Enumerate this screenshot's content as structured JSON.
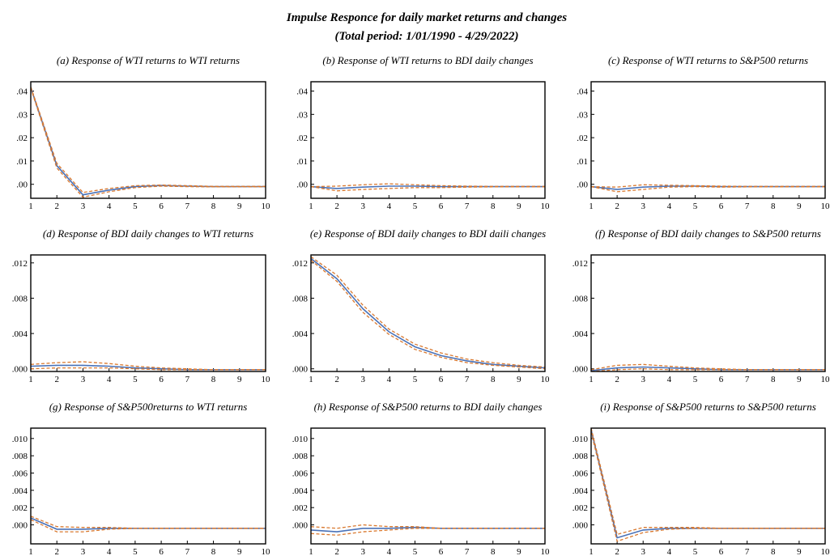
{
  "figure": {
    "title": "Impulse Responce for daily market returns and changes",
    "subtitle": "(Total period: 1/01/1990 - 4/29/2022)"
  },
  "colors": {
    "response": "#4a72b8",
    "bands": "#d9782e",
    "frame": "#000000"
  },
  "chart_data": [
    {
      "type": "line",
      "title": "(a) Response of WTI returns to WTI returns",
      "x": [
        1,
        2,
        3,
        4,
        5,
        6,
        7,
        8,
        9,
        10
      ],
      "ylim": [
        -0.006,
        0.044
      ],
      "yticks": [
        0,
        0.01,
        0.02,
        0.03,
        0.04
      ],
      "yticklabels": [
        ".00",
        ".01",
        ".02",
        ".03",
        ".04"
      ],
      "series": [
        {
          "role": "response",
          "values": [
            0.0415,
            0.008,
            -0.0045,
            -0.0025,
            -0.001,
            -0.0005,
            -0.0008,
            -0.001,
            -0.001,
            -0.001
          ]
        },
        {
          "role": "upper",
          "values": [
            0.0418,
            0.009,
            -0.0035,
            -0.0018,
            -0.0006,
            -0.0003,
            -0.0006,
            -0.0009,
            -0.0009,
            -0.0009
          ]
        },
        {
          "role": "lower",
          "values": [
            0.0412,
            0.007,
            -0.0055,
            -0.0032,
            -0.0014,
            -0.0008,
            -0.001,
            -0.0011,
            -0.0011,
            -0.0011
          ]
        }
      ]
    },
    {
      "type": "line",
      "title": "(b) Response of WTI returns to BDI daily changes",
      "x": [
        1,
        2,
        3,
        4,
        5,
        6,
        7,
        8,
        9,
        10
      ],
      "ylim": [
        -0.006,
        0.044
      ],
      "yticks": [
        0,
        0.01,
        0.02,
        0.03,
        0.04
      ],
      "yticklabels": [
        ".00",
        ".01",
        ".02",
        ".03",
        ".04"
      ],
      "series": [
        {
          "role": "response",
          "values": [
            -0.001,
            -0.0018,
            -0.0012,
            -0.0008,
            -0.0008,
            -0.001,
            -0.001,
            -0.001,
            -0.001,
            -0.001
          ]
        },
        {
          "role": "upper",
          "values": [
            -0.001,
            -0.0008,
            -0.0002,
            0.0002,
            -0.0002,
            -0.0006,
            -0.0008,
            -0.0009,
            -0.0009,
            -0.0009
          ]
        },
        {
          "role": "lower",
          "values": [
            -0.001,
            -0.0028,
            -0.0022,
            -0.0018,
            -0.0014,
            -0.0014,
            -0.0012,
            -0.0011,
            -0.0011,
            -0.0011
          ]
        }
      ]
    },
    {
      "type": "line",
      "title": "(c) Response of WTI returns to S&P500 returns",
      "x": [
        1,
        2,
        3,
        4,
        5,
        6,
        7,
        8,
        9,
        10
      ],
      "ylim": [
        -0.006,
        0.044
      ],
      "yticks": [
        0,
        0.01,
        0.02,
        0.03,
        0.04
      ],
      "yticklabels": [
        ".00",
        ".01",
        ".02",
        ".03",
        ".04"
      ],
      "series": [
        {
          "role": "response",
          "values": [
            -0.001,
            -0.0022,
            -0.0012,
            -0.0008,
            -0.0008,
            -0.001,
            -0.001,
            -0.001,
            -0.001,
            -0.001
          ]
        },
        {
          "role": "upper",
          "values": [
            -0.001,
            -0.0012,
            -0.0002,
            -0.0004,
            -0.0006,
            -0.0008,
            -0.0009,
            -0.0009,
            -0.0009,
            -0.0009
          ]
        },
        {
          "role": "lower",
          "values": [
            -0.001,
            -0.0032,
            -0.0022,
            -0.0012,
            -0.001,
            -0.0012,
            -0.0011,
            -0.0011,
            -0.0011,
            -0.0011
          ]
        }
      ]
    },
    {
      "type": "line",
      "title": "(d) Response of BDI daily changes to WTI returns",
      "x": [
        1,
        2,
        3,
        4,
        5,
        6,
        7,
        8,
        9,
        10
      ],
      "ylim": [
        -0.0003,
        0.0129
      ],
      "yticks": [
        0,
        0.004,
        0.008,
        0.012
      ],
      "yticklabels": [
        ".000",
        ".004",
        ".008",
        ".012"
      ],
      "series": [
        {
          "role": "response",
          "values": [
            0.0003,
            0.0004,
            0.0004,
            0.0003,
            0.0001,
            0.0,
            -0.0001,
            -0.0001,
            -0.0001,
            -0.0001
          ]
        },
        {
          "role": "upper",
          "values": [
            0.0005,
            0.0007,
            0.0008,
            0.0006,
            0.0003,
            0.0001,
            0.0,
            -0.0001,
            -0.0001,
            -0.0001
          ]
        },
        {
          "role": "lower",
          "values": [
            0.0,
            0.0001,
            0.0001,
            0.0001,
            0.0,
            -0.0001,
            -0.0001,
            -0.0001,
            -0.0001,
            -0.0001
          ]
        }
      ]
    },
    {
      "type": "line",
      "title": "(e) Response of BDI daily changes  to BDI daili changes",
      "x": [
        1,
        2,
        3,
        4,
        5,
        6,
        7,
        8,
        9,
        10
      ],
      "ylim": [
        -0.0003,
        0.0129
      ],
      "yticks": [
        0,
        0.004,
        0.008,
        0.012
      ],
      "yticklabels": [
        ".000",
        ".004",
        ".008",
        ".012"
      ],
      "series": [
        {
          "role": "response",
          "values": [
            0.0125,
            0.0102,
            0.0068,
            0.0042,
            0.0025,
            0.0015,
            0.0009,
            0.0005,
            0.0003,
            0.0001
          ]
        },
        {
          "role": "upper",
          "values": [
            0.0127,
            0.0106,
            0.0072,
            0.0045,
            0.0028,
            0.0018,
            0.0011,
            0.0007,
            0.0004,
            0.0002
          ]
        },
        {
          "role": "lower",
          "values": [
            0.0123,
            0.0099,
            0.0064,
            0.0039,
            0.0022,
            0.0013,
            0.0007,
            0.0004,
            0.0002,
            0.0
          ]
        }
      ]
    },
    {
      "type": "line",
      "title": "(f) Response of BDI daily changes to S&P500 returns",
      "x": [
        1,
        2,
        3,
        4,
        5,
        6,
        7,
        8,
        9,
        10
      ],
      "ylim": [
        -0.0003,
        0.0129
      ],
      "yticks": [
        0,
        0.004,
        0.008,
        0.012
      ],
      "yticklabels": [
        ".000",
        ".004",
        ".008",
        ".012"
      ],
      "series": [
        {
          "role": "response",
          "values": [
            -0.0002,
            0.0001,
            0.0002,
            0.0001,
            0.0,
            -0.0001,
            -0.0001,
            -0.0001,
            -0.0001,
            -0.0001
          ]
        },
        {
          "role": "upper",
          "values": [
            -0.0001,
            0.0004,
            0.0005,
            0.0003,
            0.0001,
            0.0,
            -0.0001,
            -0.0001,
            -0.0001,
            -0.0001
          ]
        },
        {
          "role": "lower",
          "values": [
            -0.0003,
            -0.0001,
            0.0,
            -0.0001,
            -0.0001,
            -0.0001,
            -0.0001,
            -0.0001,
            -0.0001,
            -0.0001
          ]
        }
      ]
    },
    {
      "type": "line",
      "title": "(g) Response of S&P500returns  to WTI returns",
      "x": [
        1,
        2,
        3,
        4,
        5,
        6,
        7,
        8,
        9,
        10
      ],
      "ylim": [
        -0.0022,
        0.0112
      ],
      "yticks": [
        0,
        0.002,
        0.004,
        0.006,
        0.008,
        0.01
      ],
      "yticklabels": [
        ".000",
        ".002",
        ".004",
        ".006",
        ".008",
        ".010"
      ],
      "series": [
        {
          "role": "response",
          "values": [
            0.0008,
            -0.0005,
            -0.0005,
            -0.0004,
            -0.0004,
            -0.0004,
            -0.0004,
            -0.0004,
            -0.0004,
            -0.0004
          ]
        },
        {
          "role": "upper",
          "values": [
            0.001,
            -0.0002,
            -0.0003,
            -0.0003,
            -0.0004,
            -0.0004,
            -0.0004,
            -0.0004,
            -0.0004,
            -0.0004
          ]
        },
        {
          "role": "lower",
          "values": [
            0.0006,
            -0.0008,
            -0.0008,
            -0.0005,
            -0.0004,
            -0.0004,
            -0.0004,
            -0.0004,
            -0.0004,
            -0.0004
          ]
        }
      ]
    },
    {
      "type": "line",
      "title": "(h) Response of S&P500 returns to BDI daily changes",
      "x": [
        1,
        2,
        3,
        4,
        5,
        6,
        7,
        8,
        9,
        10
      ],
      "ylim": [
        -0.0022,
        0.0112
      ],
      "yticks": [
        0,
        0.002,
        0.004,
        0.006,
        0.008,
        0.01
      ],
      "yticklabels": [
        ".000",
        ".002",
        ".004",
        ".006",
        ".008",
        ".010"
      ],
      "series": [
        {
          "role": "response",
          "values": [
            -0.0006,
            -0.0008,
            -0.0004,
            -0.0004,
            -0.0003,
            -0.0004,
            -0.0004,
            -0.0004,
            -0.0004,
            -0.0004
          ]
        },
        {
          "role": "upper",
          "values": [
            -0.0002,
            -0.0004,
            0.0,
            -0.0002,
            -0.0002,
            -0.0004,
            -0.0004,
            -0.0004,
            -0.0004,
            -0.0004
          ]
        },
        {
          "role": "lower",
          "values": [
            -0.001,
            -0.0012,
            -0.0008,
            -0.0006,
            -0.0004,
            -0.0004,
            -0.0004,
            -0.0004,
            -0.0004,
            -0.0004
          ]
        }
      ]
    },
    {
      "type": "line",
      "title": "(i) Response of S&P500 returns to S&P500 returns",
      "x": [
        1,
        2,
        3,
        4,
        5,
        6,
        7,
        8,
        9,
        10
      ],
      "ylim": [
        -0.0022,
        0.0112
      ],
      "yticks": [
        0,
        0.002,
        0.004,
        0.006,
        0.008,
        0.01
      ],
      "yticklabels": [
        ".000",
        ".002",
        ".004",
        ".006",
        ".008",
        ".010"
      ],
      "series": [
        {
          "role": "response",
          "values": [
            0.011,
            -0.0015,
            -0.0006,
            -0.0004,
            -0.0004,
            -0.0004,
            -0.0004,
            -0.0004,
            -0.0004,
            -0.0004
          ]
        },
        {
          "role": "upper",
          "values": [
            0.0112,
            -0.0011,
            -0.0003,
            -0.0003,
            -0.0003,
            -0.0004,
            -0.0004,
            -0.0004,
            -0.0004,
            -0.0004
          ]
        },
        {
          "role": "lower",
          "values": [
            0.0108,
            -0.0019,
            -0.0009,
            -0.0005,
            -0.0004,
            -0.0004,
            -0.0004,
            -0.0004,
            -0.0004,
            -0.0004
          ]
        }
      ]
    }
  ]
}
